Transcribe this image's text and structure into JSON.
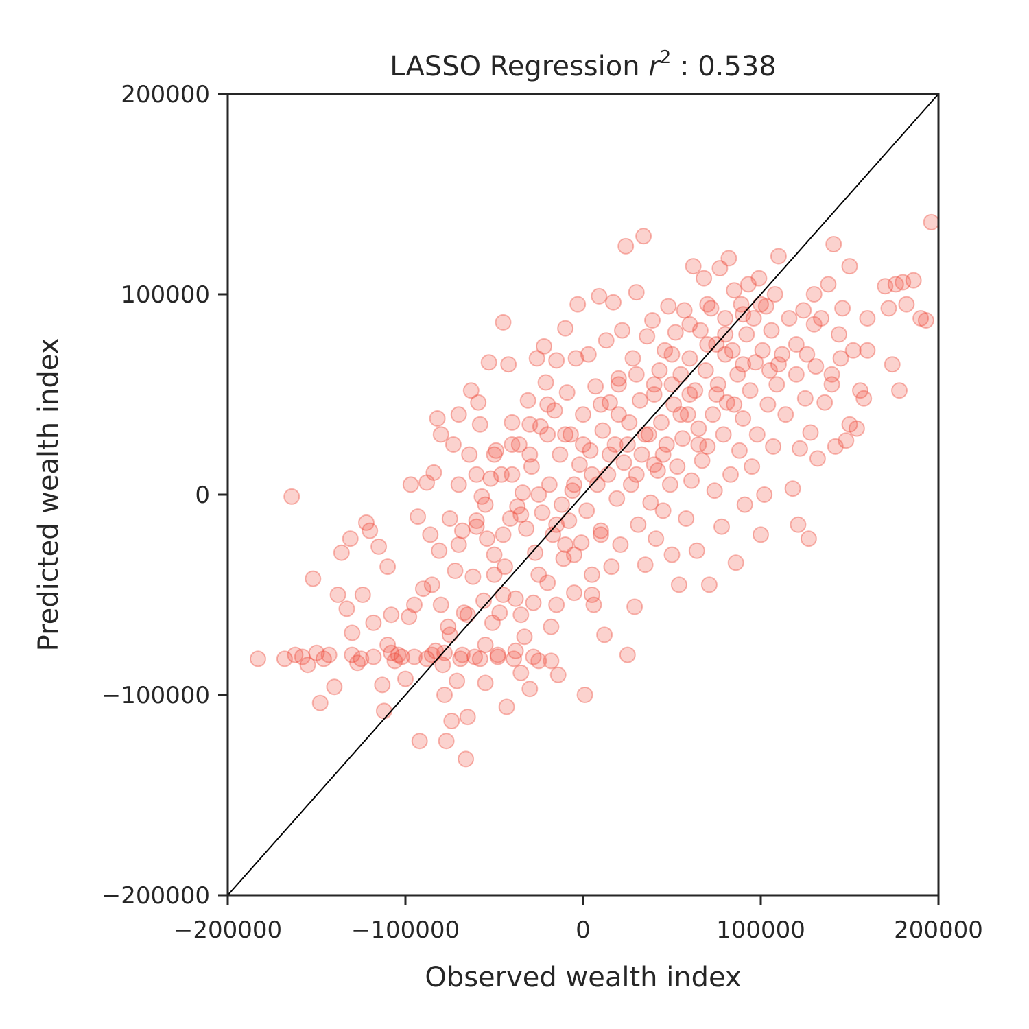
{
  "chart_data": {
    "type": "scatter",
    "title_prefix": "LASSO Regression ",
    "title_r": "r",
    "title_exp": "2",
    "title_suffix": " : 0.538",
    "xlabel": "Observed wealth index",
    "ylabel": "Predicted wealth index",
    "xlim": [
      -200000,
      200000
    ],
    "ylim": [
      -200000,
      200000
    ],
    "xticks": [
      -200000,
      -100000,
      0,
      100000,
      200000
    ],
    "yticks": [
      -200000,
      -100000,
      0,
      100000,
      200000
    ],
    "xtick_labels": [
      "−200000",
      "−100000",
      "0",
      "100000",
      "200000"
    ],
    "ytick_labels": [
      "−200000",
      "−100000",
      "0",
      "100000",
      "200000"
    ],
    "grid": false,
    "reference_line": {
      "from": [
        -200000,
        -200000
      ],
      "to": [
        200000,
        200000
      ],
      "color": "#000000"
    },
    "point_color": "#ee4b3b",
    "point_alpha": 0.25,
    "points": [
      [
        -183000,
        -82000
      ],
      [
        -168000,
        -82000
      ],
      [
        -164000,
        -1000
      ],
      [
        -162000,
        -80000
      ],
      [
        -158000,
        -81000
      ],
      [
        -155000,
        -85000
      ],
      [
        -152000,
        -42000
      ],
      [
        -150000,
        -79000
      ],
      [
        -148000,
        -104000
      ],
      [
        -146000,
        -82000
      ],
      [
        -143000,
        -80000
      ],
      [
        -140000,
        -96000
      ],
      [
        -138000,
        -50000
      ],
      [
        -136000,
        -29000
      ],
      [
        -133000,
        -57000
      ],
      [
        -131000,
        -22000
      ],
      [
        -130000,
        -69000
      ],
      [
        -127000,
        -84000
      ],
      [
        -124000,
        -50000
      ],
      [
        -122000,
        -14000
      ],
      [
        -120000,
        -18000
      ],
      [
        -118000,
        -64000
      ],
      [
        -115000,
        -26000
      ],
      [
        -113000,
        -95000
      ],
      [
        -112000,
        -108000
      ],
      [
        -110000,
        -36000
      ],
      [
        -108000,
        -60000
      ],
      [
        -106000,
        -83000
      ],
      [
        -104000,
        -80000
      ],
      [
        -102000,
        -81000
      ],
      [
        -100000,
        -92000
      ],
      [
        -98000,
        -61000
      ],
      [
        -97000,
        5000
      ],
      [
        -95000,
        -81000
      ],
      [
        -93000,
        -11000
      ],
      [
        -92000,
        -123000
      ],
      [
        -90000,
        -47000
      ],
      [
        -88000,
        6000
      ],
      [
        -86000,
        -20000
      ],
      [
        -85000,
        -45000
      ],
      [
        -84000,
        11000
      ],
      [
        -83000,
        -78000
      ],
      [
        -82000,
        38000
      ],
      [
        -81000,
        -28000
      ],
      [
        -80000,
        -55000
      ],
      [
        -79000,
        -85000
      ],
      [
        -78000,
        -100000
      ],
      [
        -77000,
        -123000
      ],
      [
        -76000,
        -66000
      ],
      [
        -75000,
        -12000
      ],
      [
        -74000,
        -113000
      ],
      [
        -73000,
        25000
      ],
      [
        -72000,
        -38000
      ],
      [
        -71000,
        -93000
      ],
      [
        -70000,
        5000
      ],
      [
        -69000,
        -82000
      ],
      [
        -68000,
        -18000
      ],
      [
        -67000,
        -59000
      ],
      [
        -66000,
        -132000
      ],
      [
        -65000,
        -111000
      ],
      [
        -64000,
        20000
      ],
      [
        -63000,
        52000
      ],
      [
        -62000,
        -41000
      ],
      [
        -61000,
        -81000
      ],
      [
        -60000,
        -13000
      ],
      [
        -59000,
        46000
      ],
      [
        -58000,
        35000
      ],
      [
        -57000,
        -1000
      ],
      [
        -56000,
        -53000
      ],
      [
        -55000,
        -94000
      ],
      [
        -54000,
        -22000
      ],
      [
        -53000,
        66000
      ],
      [
        -52000,
        8000
      ],
      [
        -51000,
        -64000
      ],
      [
        -50000,
        -30000
      ],
      [
        -49000,
        22000
      ],
      [
        -48000,
        -81000
      ],
      [
        -47000,
        -59000
      ],
      [
        -46000,
        10000
      ],
      [
        -45000,
        86000
      ],
      [
        -44000,
        -36000
      ],
      [
        -43000,
        -106000
      ],
      [
        -42000,
        65000
      ],
      [
        -41000,
        -12000
      ],
      [
        -40000,
        36000
      ],
      [
        -39000,
        -82000
      ],
      [
        -38000,
        -52000
      ],
      [
        -37000,
        -6000
      ],
      [
        -36000,
        25000
      ],
      [
        -35000,
        -89000
      ],
      [
        -34000,
        1000
      ],
      [
        -33000,
        -71000
      ],
      [
        -32000,
        -17000
      ],
      [
        -31000,
        47000
      ],
      [
        -30000,
        -97000
      ],
      [
        -29000,
        14000
      ],
      [
        -28000,
        -54000
      ],
      [
        -27000,
        -29000
      ],
      [
        -26000,
        68000
      ],
      [
        -25000,
        -83000
      ],
      [
        -24000,
        34000
      ],
      [
        -23000,
        -9000
      ],
      [
        -22000,
        74000
      ],
      [
        -21000,
        56000
      ],
      [
        -20000,
        -44000
      ],
      [
        -19000,
        5000
      ],
      [
        -18000,
        -66000
      ],
      [
        -17000,
        -20000
      ],
      [
        -16000,
        42000
      ],
      [
        -15000,
        67000
      ],
      [
        -14000,
        -90000
      ],
      [
        -13000,
        20000
      ],
      [
        -12000,
        -5000
      ],
      [
        -11000,
        -32000
      ],
      [
        -10000,
        83000
      ],
      [
        -9000,
        51000
      ],
      [
        -8000,
        -13000
      ],
      [
        -7000,
        30000
      ],
      [
        -6000,
        2000
      ],
      [
        -5000,
        -49000
      ],
      [
        -4000,
        68000
      ],
      [
        -3000,
        95000
      ],
      [
        -2000,
        15000
      ],
      [
        -1000,
        -24000
      ],
      [
        0,
        40000
      ],
      [
        1000,
        -100000
      ],
      [
        2000,
        -8000
      ],
      [
        3000,
        70000
      ],
      [
        4000,
        22000
      ],
      [
        5000,
        -40000
      ],
      [
        6000,
        -55000
      ],
      [
        7000,
        54000
      ],
      [
        8000,
        5000
      ],
      [
        9000,
        99000
      ],
      [
        10000,
        -18000
      ],
      [
        11000,
        32000
      ],
      [
        12000,
        -70000
      ],
      [
        13000,
        77000
      ],
      [
        14000,
        10000
      ],
      [
        15000,
        46000
      ],
      [
        16000,
        -36000
      ],
      [
        17000,
        96000
      ],
      [
        18000,
        25000
      ],
      [
        19000,
        -2000
      ],
      [
        20000,
        58000
      ],
      [
        21000,
        -25000
      ],
      [
        22000,
        82000
      ],
      [
        23000,
        16000
      ],
      [
        24000,
        124000
      ],
      [
        25000,
        -80000
      ],
      [
        26000,
        36000
      ],
      [
        27000,
        5000
      ],
      [
        28000,
        68000
      ],
      [
        29000,
        -56000
      ],
      [
        30000,
        101000
      ],
      [
        31000,
        -15000
      ],
      [
        32000,
        47000
      ],
      [
        33000,
        20000
      ],
      [
        34000,
        129000
      ],
      [
        35000,
        -35000
      ],
      [
        36000,
        79000
      ],
      [
        37000,
        30000
      ],
      [
        38000,
        -4000
      ],
      [
        39000,
        87000
      ],
      [
        40000,
        55000
      ],
      [
        41000,
        -22000
      ],
      [
        42000,
        12000
      ],
      [
        43000,
        62000
      ],
      [
        44000,
        36000
      ],
      [
        45000,
        -8000
      ],
      [
        46000,
        72000
      ],
      [
        47000,
        25000
      ],
      [
        48000,
        94000
      ],
      [
        49000,
        5000
      ],
      [
        50000,
        -30000
      ],
      [
        51000,
        45000
      ],
      [
        52000,
        81000
      ],
      [
        53000,
        14000
      ],
      [
        54000,
        -45000
      ],
      [
        55000,
        60000
      ],
      [
        56000,
        28000
      ],
      [
        57000,
        92000
      ],
      [
        58000,
        -12000
      ],
      [
        59000,
        40000
      ],
      [
        60000,
        68000
      ],
      [
        61000,
        7000
      ],
      [
        62000,
        114000
      ],
      [
        63000,
        52000
      ],
      [
        64000,
        -28000
      ],
      [
        65000,
        33000
      ],
      [
        66000,
        82000
      ],
      [
        67000,
        17000
      ],
      [
        68000,
        108000
      ],
      [
        69000,
        62000
      ],
      [
        70000,
        24000
      ],
      [
        71000,
        -45000
      ],
      [
        72000,
        93000
      ],
      [
        73000,
        40000
      ],
      [
        74000,
        2000
      ],
      [
        75000,
        75000
      ],
      [
        76000,
        55000
      ],
      [
        77000,
        113000
      ],
      [
        78000,
        -16000
      ],
      [
        79000,
        30000
      ],
      [
        80000,
        88000
      ],
      [
        81000,
        46000
      ],
      [
        82000,
        118000
      ],
      [
        83000,
        10000
      ],
      [
        84000,
        72000
      ],
      [
        85000,
        102000
      ],
      [
        86000,
        -34000
      ],
      [
        87000,
        60000
      ],
      [
        88000,
        22000
      ],
      [
        89000,
        95000
      ],
      [
        90000,
        38000
      ],
      [
        91000,
        -5000
      ],
      [
        92000,
        80000
      ],
      [
        93000,
        105000
      ],
      [
        94000,
        52000
      ],
      [
        95000,
        14000
      ],
      [
        96000,
        88000
      ],
      [
        97000,
        66000
      ],
      [
        98000,
        30000
      ],
      [
        99000,
        108000
      ],
      [
        100000,
        -20000
      ],
      [
        101000,
        72000
      ],
      [
        102000,
        0
      ],
      [
        103000,
        94000
      ],
      [
        104000,
        45000
      ],
      [
        105000,
        62000
      ],
      [
        106000,
        82000
      ],
      [
        107000,
        24000
      ],
      [
        108000,
        100000
      ],
      [
        109000,
        55000
      ],
      [
        110000,
        119000
      ],
      [
        112000,
        70000
      ],
      [
        114000,
        40000
      ],
      [
        116000,
        88000
      ],
      [
        118000,
        3000
      ],
      [
        120000,
        60000
      ],
      [
        121000,
        -15000
      ],
      [
        122000,
        23000
      ],
      [
        124000,
        92000
      ],
      [
        125000,
        48000
      ],
      [
        126000,
        70000
      ],
      [
        127000,
        -22000
      ],
      [
        128000,
        31000
      ],
      [
        130000,
        100000
      ],
      [
        131000,
        64000
      ],
      [
        132000,
        18000
      ],
      [
        134000,
        88000
      ],
      [
        136000,
        46000
      ],
      [
        138000,
        105000
      ],
      [
        140000,
        60000
      ],
      [
        141000,
        125000
      ],
      [
        142000,
        24000
      ],
      [
        144000,
        80000
      ],
      [
        145000,
        68000
      ],
      [
        146000,
        93000
      ],
      [
        148000,
        27000
      ],
      [
        150000,
        114000
      ],
      [
        152000,
        72000
      ],
      [
        154000,
        33000
      ],
      [
        156000,
        52000
      ],
      [
        158000,
        48000
      ],
      [
        160000,
        88000
      ],
      [
        170000,
        104000
      ],
      [
        172000,
        93000
      ],
      [
        174000,
        65000
      ],
      [
        176000,
        105000
      ],
      [
        178000,
        52000
      ],
      [
        180000,
        106000
      ],
      [
        182000,
        95000
      ],
      [
        186000,
        107000
      ],
      [
        190000,
        88000
      ],
      [
        193000,
        87000
      ],
      [
        196000,
        136000
      ],
      [
        -60000,
        -16000
      ],
      [
        -55000,
        -5000
      ],
      [
        -45000,
        -20000
      ],
      [
        -35000,
        -10000
      ],
      [
        -25000,
        0
      ],
      [
        -15000,
        -15000
      ],
      [
        -5000,
        5000
      ],
      [
        5000,
        10000
      ],
      [
        15000,
        20000
      ],
      [
        25000,
        25000
      ],
      [
        35000,
        30000
      ],
      [
        45000,
        20000
      ],
      [
        55000,
        40000
      ],
      [
        65000,
        25000
      ],
      [
        75000,
        50000
      ],
      [
        85000,
        45000
      ],
      [
        -70000,
        -25000
      ],
      [
        -50000,
        -40000
      ],
      [
        -40000,
        10000
      ],
      [
        -30000,
        20000
      ],
      [
        -20000,
        30000
      ],
      [
        -10000,
        -25000
      ],
      [
        10000,
        -20000
      ],
      [
        20000,
        40000
      ],
      [
        30000,
        10000
      ],
      [
        40000,
        15000
      ],
      [
        50000,
        55000
      ],
      [
        60000,
        50000
      ],
      [
        70000,
        75000
      ],
      [
        80000,
        70000
      ],
      [
        90000,
        65000
      ],
      [
        -110000,
        -75000
      ],
      [
        -95000,
        -55000
      ],
      [
        -85000,
        -80000
      ],
      [
        -75000,
        -70000
      ],
      [
        -65000,
        -60000
      ],
      [
        -55000,
        -75000
      ],
      [
        -45000,
        -50000
      ],
      [
        -35000,
        -60000
      ],
      [
        -25000,
        -40000
      ],
      [
        -15000,
        -55000
      ],
      [
        -5000,
        -30000
      ],
      [
        5000,
        -50000
      ],
      [
        -130000,
        -80000
      ],
      [
        -125000,
        -82000
      ],
      [
        -118000,
        -81000
      ],
      [
        -108000,
        -79000
      ],
      [
        -88000,
        -82000
      ],
      [
        -78000,
        -79000
      ],
      [
        -68000,
        -80000
      ],
      [
        -58000,
        -82000
      ],
      [
        -48000,
        -80000
      ],
      [
        -38000,
        -78000
      ],
      [
        -28000,
        -81000
      ],
      [
        -18000,
        -83000
      ],
      [
        -80000,
        30000
      ],
      [
        -70000,
        40000
      ],
      [
        -60000,
        10000
      ],
      [
        -50000,
        20000
      ],
      [
        -40000,
        25000
      ],
      [
        -30000,
        35000
      ],
      [
        -20000,
        45000
      ],
      [
        -10000,
        30000
      ],
      [
        0,
        25000
      ],
      [
        10000,
        45000
      ],
      [
        20000,
        55000
      ],
      [
        30000,
        60000
      ],
      [
        40000,
        50000
      ],
      [
        50000,
        70000
      ],
      [
        60000,
        85000
      ],
      [
        70000,
        95000
      ],
      [
        80000,
        80000
      ],
      [
        90000,
        90000
      ],
      [
        100000,
        95000
      ],
      [
        110000,
        65000
      ],
      [
        120000,
        75000
      ],
      [
        130000,
        85000
      ],
      [
        140000,
        55000
      ],
      [
        150000,
        35000
      ],
      [
        160000,
        72000
      ]
    ]
  }
}
